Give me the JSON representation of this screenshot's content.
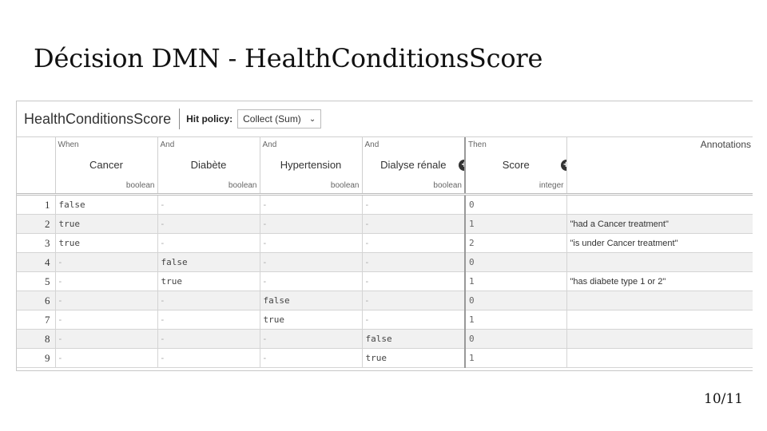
{
  "slide": {
    "title": "Décision DMN - HealthConditionsScore",
    "page": "10/11"
  },
  "dmn": {
    "name": "HealthConditionsScore",
    "hit_policy_label": "Hit policy:",
    "hit_policy_value": "Collect (Sum)",
    "columns": [
      {
        "kw": "When",
        "name": "Cancer",
        "type": "boolean"
      },
      {
        "kw": "And",
        "name": "Diabète",
        "type": "boolean"
      },
      {
        "kw": "And",
        "name": "Hypertension",
        "type": "boolean"
      },
      {
        "kw": "And",
        "name": "Dialyse rénale",
        "type": "boolean"
      },
      {
        "kw": "Then",
        "name": "Score",
        "type": "integer"
      }
    ],
    "annotations_label": "Annotations",
    "rows": [
      {
        "n": "1",
        "c": [
          "false",
          "-",
          "-",
          "-"
        ],
        "score": "0",
        "annotation": ""
      },
      {
        "n": "2",
        "c": [
          "true",
          "-",
          "-",
          "-"
        ],
        "score": "1",
        "annotation": "\"had a Cancer treatment\""
      },
      {
        "n": "3",
        "c": [
          "true",
          "-",
          "-",
          "-"
        ],
        "score": "2",
        "annotation": "\"is under Cancer treatment\""
      },
      {
        "n": "4",
        "c": [
          "-",
          "false",
          "-",
          "-"
        ],
        "score": "0",
        "annotation": ""
      },
      {
        "n": "5",
        "c": [
          "-",
          "true",
          "-",
          "-"
        ],
        "score": "1",
        "annotation": "\"has diabete type 1 or 2\""
      },
      {
        "n": "6",
        "c": [
          "-",
          "-",
          "false",
          "-"
        ],
        "score": "0",
        "annotation": ""
      },
      {
        "n": "7",
        "c": [
          "-",
          "-",
          "true",
          "-"
        ],
        "score": "1",
        "annotation": ""
      },
      {
        "n": "8",
        "c": [
          "-",
          "-",
          "-",
          "false"
        ],
        "score": "0",
        "annotation": ""
      },
      {
        "n": "9",
        "c": [
          "-",
          "-",
          "-",
          "true"
        ],
        "score": "1",
        "annotation": ""
      }
    ]
  }
}
